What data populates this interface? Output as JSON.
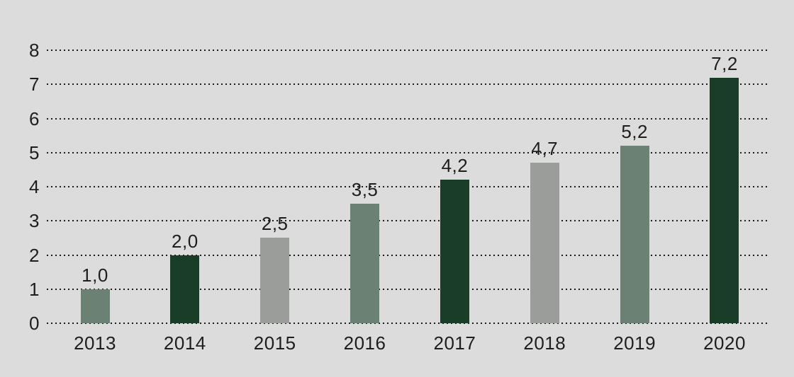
{
  "chart_data": {
    "type": "bar",
    "title": "",
    "xlabel": "",
    "ylabel": "",
    "categories": [
      "2013",
      "2014",
      "2015",
      "2016",
      "2017",
      "2018",
      "2019",
      "2020"
    ],
    "values": [
      1.0,
      2.0,
      2.5,
      3.5,
      4.2,
      4.7,
      5.2,
      7.2
    ],
    "value_labels": [
      "1,0",
      "2,0",
      "2,5",
      "3,5",
      "4,2",
      "4,7",
      "5,2",
      "7,2"
    ],
    "bar_color_keys": [
      "sage",
      "dark",
      "gray",
      "sage",
      "dark",
      "gray",
      "sage",
      "dark"
    ],
    "ylim": [
      0,
      8
    ],
    "yticks": [
      0,
      1,
      2,
      3,
      4,
      5,
      6,
      7,
      8
    ],
    "grid": "horizontal-dotted",
    "legend": "none",
    "decimal_separator": ","
  },
  "palette": {
    "dark": "#1a3d2a",
    "sage": "#6a8174",
    "gray": "#9a9d9a",
    "background": "#dbdcdb",
    "text": "#1e1e1c",
    "gridline": "#1a1a1a"
  }
}
